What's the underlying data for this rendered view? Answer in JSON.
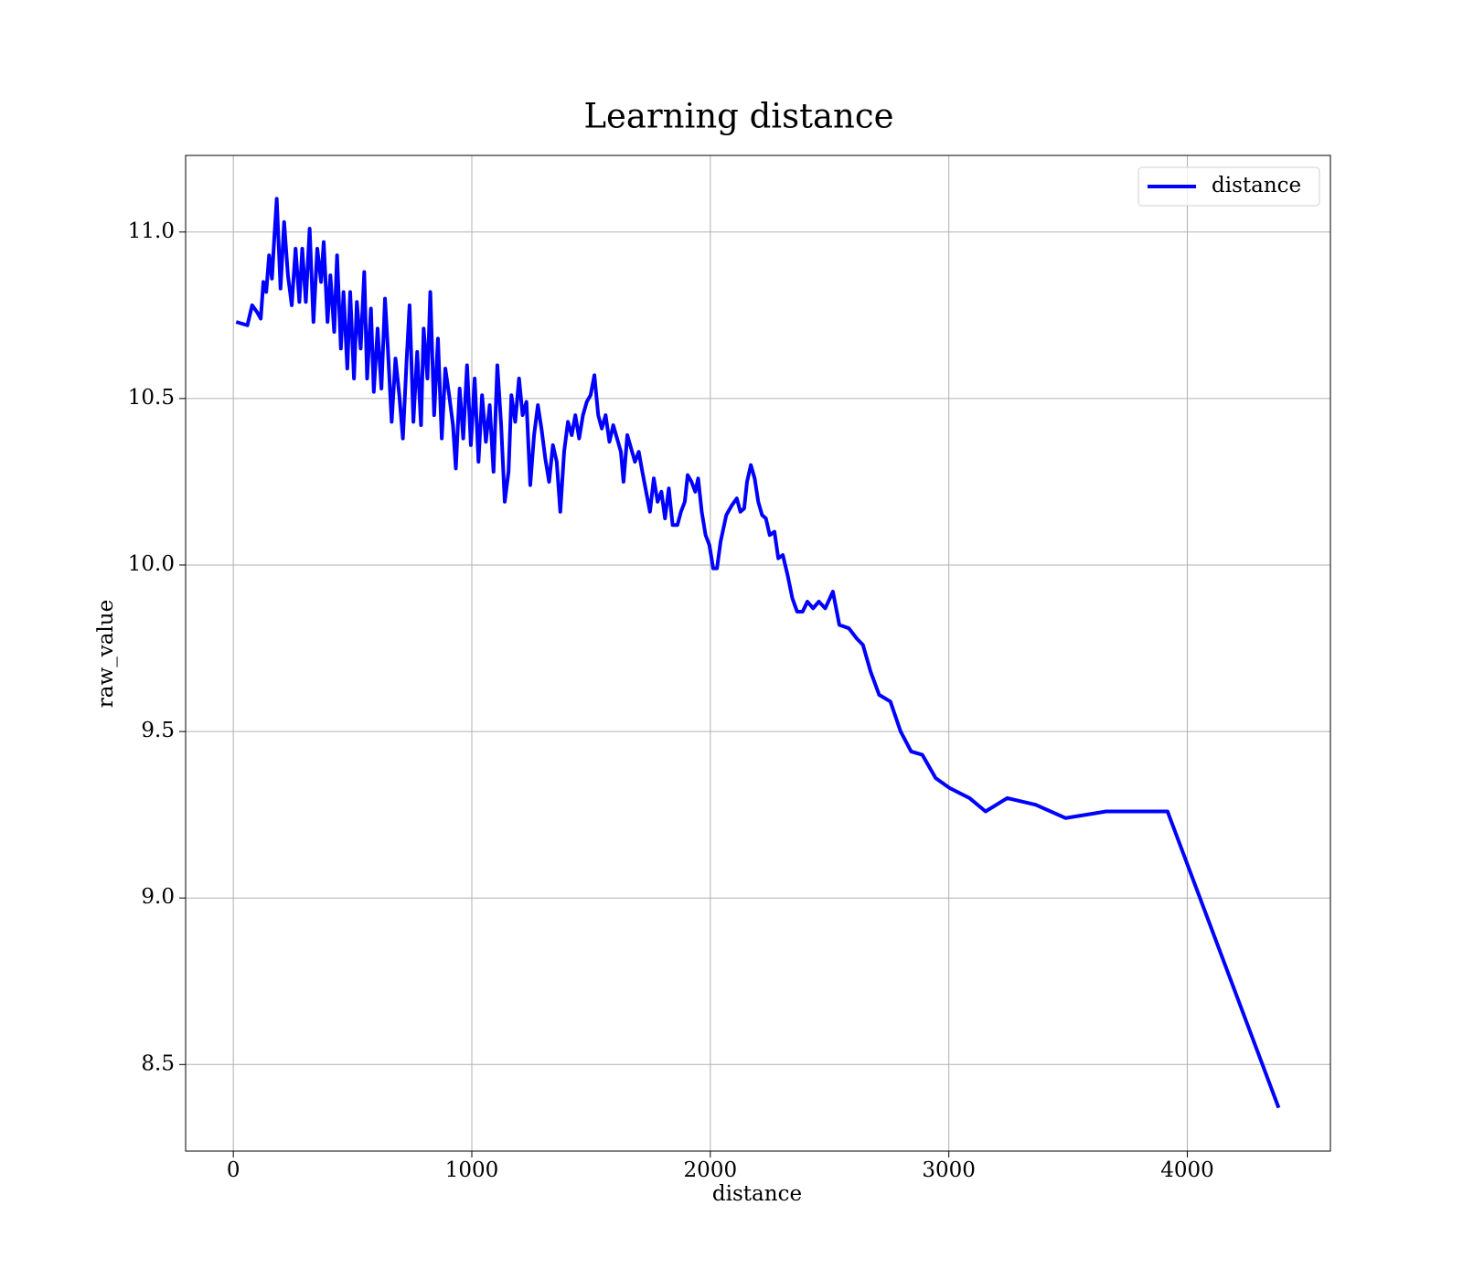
{
  "chart_data": {
    "type": "line",
    "title": "Learning distance",
    "xlabel": "distance",
    "ylabel": "raw_value",
    "xlim": [
      -200,
      4600
    ],
    "ylim": [
      8.24,
      11.23
    ],
    "xticks": [
      0,
      1000,
      2000,
      3000,
      4000
    ],
    "yticks": [
      {
        "value": 8.5,
        "label": "8.5"
      },
      {
        "value": 9,
        "label": "9.0"
      },
      {
        "value": 9.5,
        "label": "9.5"
      },
      {
        "value": 10,
        "label": "10.0"
      },
      {
        "value": 10.5,
        "label": "10.5"
      },
      {
        "value": 11,
        "label": "11.0"
      }
    ],
    "grid": true,
    "legend": "upper right",
    "x": [
      12,
      59,
      79,
      99,
      115,
      126,
      138,
      150,
      162,
      170,
      182,
      198,
      213,
      229,
      245,
      261,
      277,
      289,
      304,
      320,
      336,
      352,
      368,
      379,
      395,
      407,
      423,
      435,
      451,
      462,
      478,
      490,
      506,
      518,
      534,
      549,
      561,
      577,
      589,
      605,
      621,
      636,
      648,
      664,
      680,
      696,
      711,
      727,
      739,
      755,
      771,
      787,
      798,
      814,
      826,
      842,
      858,
      874,
      889,
      905,
      921,
      933,
      949,
      964,
      980,
      996,
      1012,
      1028,
      1043,
      1059,
      1075,
      1091,
      1107,
      1123,
      1138,
      1154,
      1166,
      1182,
      1198,
      1213,
      1229,
      1245,
      1261,
      1277,
      1292,
      1308,
      1324,
      1340,
      1356,
      1371,
      1387,
      1403,
      1419,
      1434,
      1450,
      1466,
      1482,
      1498,
      1514,
      1530,
      1545,
      1561,
      1577,
      1593,
      1609,
      1625,
      1636,
      1652,
      1668,
      1684,
      1700,
      1715,
      1731,
      1747,
      1763,
      1779,
      1795,
      1810,
      1826,
      1842,
      1862,
      1877,
      1893,
      1905,
      1921,
      1937,
      1949,
      1964,
      1980,
      1996,
      2012,
      2028,
      2043,
      2067,
      2091,
      2111,
      2126,
      2142,
      2154,
      2170,
      2186,
      2201,
      2217,
      2233,
      2249,
      2269,
      2285,
      2304,
      2324,
      2344,
      2364,
      2387,
      2407,
      2431,
      2455,
      2482,
      2514,
      2541,
      2581,
      2613,
      2640,
      2672,
      2708,
      2755,
      2798,
      2842,
      2889,
      2945,
      3004,
      3087,
      3154,
      3245,
      3364,
      3490,
      3660,
      3917,
      4383
    ],
    "series": [
      {
        "name": "distance",
        "color": "#0000ff",
        "values": [
          10.73,
          10.72,
          10.78,
          10.76,
          10.74,
          10.85,
          10.82,
          10.93,
          10.86,
          10.96,
          11.1,
          10.83,
          11.03,
          10.87,
          10.78,
          10.95,
          10.79,
          10.95,
          10.79,
          11.01,
          10.73,
          10.95,
          10.85,
          10.97,
          10.73,
          10.87,
          10.7,
          10.93,
          10.65,
          10.82,
          10.59,
          10.82,
          10.56,
          10.79,
          10.65,
          10.88,
          10.56,
          10.77,
          10.52,
          10.71,
          10.53,
          10.8,
          10.65,
          10.43,
          10.62,
          10.51,
          10.38,
          10.62,
          10.78,
          10.43,
          10.64,
          10.42,
          10.71,
          10.56,
          10.82,
          10.45,
          10.68,
          10.38,
          10.59,
          10.51,
          10.42,
          10.29,
          10.53,
          10.38,
          10.6,
          10.36,
          10.56,
          10.31,
          10.51,
          10.37,
          10.48,
          10.28,
          10.6,
          10.42,
          10.19,
          10.28,
          10.51,
          10.43,
          10.56,
          10.45,
          10.49,
          10.24,
          10.39,
          10.48,
          10.41,
          10.32,
          10.25,
          10.36,
          10.31,
          10.16,
          10.34,
          10.43,
          10.39,
          10.45,
          10.38,
          10.45,
          10.49,
          10.51,
          10.57,
          10.45,
          10.41,
          10.45,
          10.37,
          10.42,
          10.38,
          10.34,
          10.25,
          10.39,
          10.35,
          10.31,
          10.34,
          10.28,
          10.22,
          10.16,
          10.26,
          10.19,
          10.22,
          10.14,
          10.23,
          10.12,
          10.12,
          10.16,
          10.19,
          10.27,
          10.25,
          10.22,
          10.26,
          10.16,
          10.09,
          10.06,
          9.99,
          9.99,
          10.07,
          10.15,
          10.18,
          10.2,
          10.16,
          10.17,
          10.25,
          10.3,
          10.26,
          10.19,
          10.15,
          10.14,
          10.09,
          10.1,
          10.02,
          10.03,
          9.97,
          9.9,
          9.86,
          9.86,
          9.89,
          9.87,
          9.89,
          9.87,
          9.92,
          9.82,
          9.81,
          9.78,
          9.76,
          9.68,
          9.61,
          9.59,
          9.5,
          9.44,
          9.43,
          9.36,
          9.33,
          9.3,
          9.26,
          9.3,
          9.28,
          9.24,
          9.26,
          9.26,
          8.37
        ]
      }
    ]
  }
}
